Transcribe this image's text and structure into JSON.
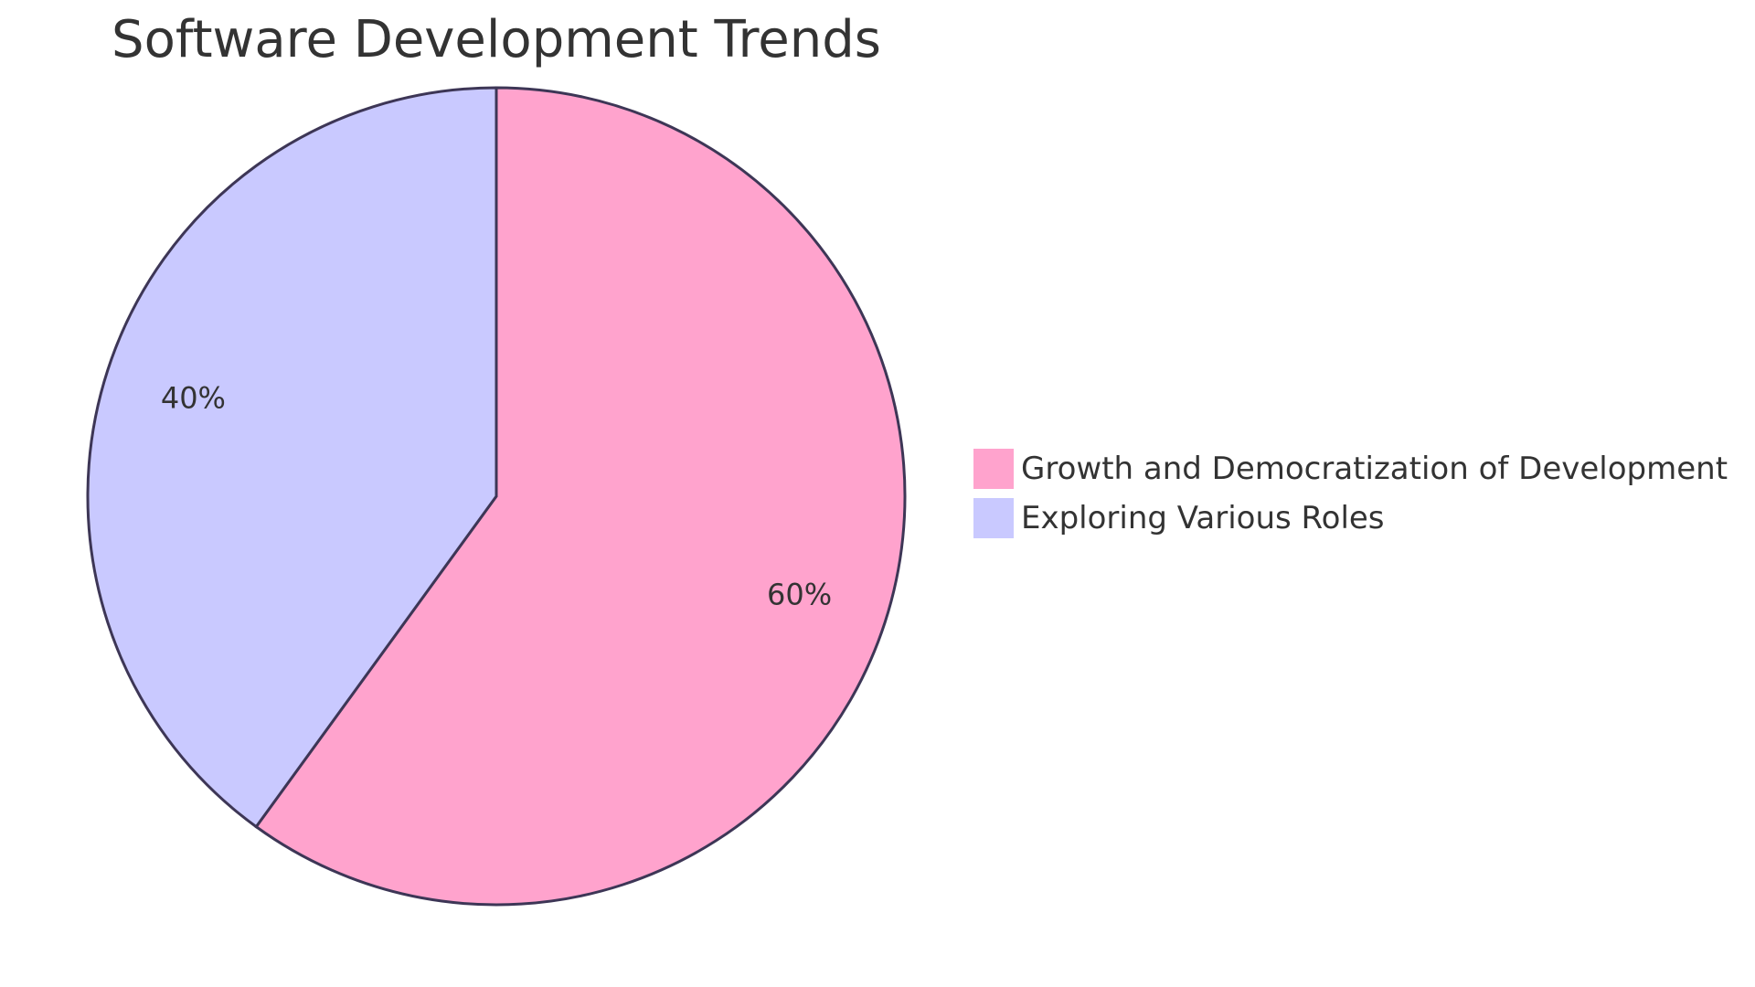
{
  "chart_data": {
    "type": "pie",
    "title": "Software Development Trends",
    "slices": [
      {
        "label": "Growth and Democratization of Development",
        "value": 60,
        "display": "60%",
        "color": "#ffa3cd"
      },
      {
        "label": "Exploring Various Roles",
        "value": 40,
        "display": "40%",
        "color": "#c9c9ff"
      }
    ],
    "start_angle_deg": 0,
    "direction": "clockwise",
    "legend_position": "right",
    "stroke_color": "#3d3656",
    "text_color": "#333333"
  }
}
